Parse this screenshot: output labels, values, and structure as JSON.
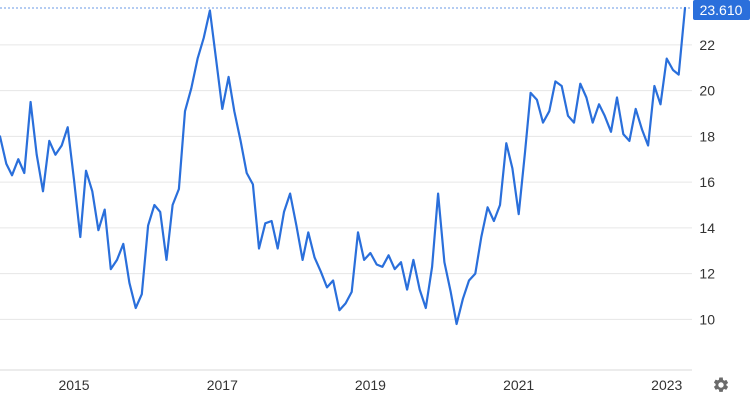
{
  "chart_data": {
    "type": "line",
    "title": "",
    "xlabel": "",
    "ylabel": "",
    "x_ticks": [
      "2015",
      "2017",
      "2019",
      "2021",
      "2023"
    ],
    "y_ticks": [
      "10",
      "12",
      "14",
      "16",
      "18",
      "20",
      "22"
    ],
    "ylim": [
      8.4,
      23.61
    ],
    "grid": "horizontal",
    "last_value_label": "23.610",
    "colors": {
      "line": "#2a6fdb",
      "grid": "#e6e6e6",
      "badge": "#2a6fdb"
    },
    "series": [
      {
        "x": [
          "2014-01",
          "2014-02",
          "2014-03",
          "2014-04",
          "2014-05",
          "2014-06",
          "2014-07",
          "2014-08",
          "2014-09",
          "2014-10",
          "2014-11",
          "2014-12",
          "2015-01",
          "2015-02",
          "2015-03",
          "2015-04",
          "2015-05",
          "2015-06",
          "2015-07",
          "2015-08",
          "2015-09",
          "2015-10",
          "2015-11",
          "2015-12",
          "2016-01",
          "2016-02",
          "2016-03",
          "2016-04",
          "2016-05",
          "2016-06",
          "2016-07",
          "2016-08",
          "2016-09",
          "2016-10",
          "2016-11",
          "2016-12",
          "2017-01",
          "2017-02",
          "2017-03",
          "2017-04",
          "2017-05",
          "2017-06",
          "2017-07",
          "2017-08",
          "2017-09",
          "2017-10",
          "2017-11",
          "2017-12",
          "2018-01",
          "2018-02",
          "2018-03",
          "2018-04",
          "2018-05",
          "2018-06",
          "2018-07",
          "2018-08",
          "2018-09",
          "2018-10",
          "2018-11",
          "2018-12",
          "2019-01",
          "2019-02",
          "2019-03",
          "2019-04",
          "2019-05",
          "2019-06",
          "2019-07",
          "2019-08",
          "2019-09",
          "2019-10",
          "2019-11",
          "2019-12",
          "2020-01",
          "2020-02",
          "2020-03",
          "2020-04",
          "2020-05",
          "2020-06",
          "2020-07",
          "2020-08",
          "2020-09",
          "2020-10",
          "2020-11",
          "2020-12",
          "2021-01",
          "2021-02",
          "2021-03",
          "2021-04",
          "2021-05",
          "2021-06",
          "2021-07",
          "2021-08",
          "2021-09",
          "2021-10",
          "2021-11",
          "2021-12",
          "2022-01",
          "2022-02",
          "2022-03",
          "2022-04",
          "2022-05",
          "2022-06",
          "2022-07",
          "2022-08",
          "2022-09",
          "2022-10",
          "2022-11",
          "2022-12",
          "2023-01",
          "2023-02",
          "2023-03",
          "2023-04"
        ],
        "values": [
          18.0,
          16.8,
          16.3,
          17.0,
          16.4,
          19.5,
          17.2,
          15.6,
          17.8,
          17.2,
          17.6,
          18.4,
          16.1,
          13.6,
          16.5,
          15.6,
          13.9,
          14.8,
          12.2,
          12.6,
          13.3,
          11.6,
          10.5,
          11.1,
          14.1,
          15.0,
          14.7,
          12.6,
          15.0,
          15.7,
          19.1,
          20.1,
          21.4,
          22.3,
          23.5,
          21.4,
          19.2,
          20.6,
          19.1,
          17.8,
          16.4,
          15.9,
          13.1,
          14.2,
          14.3,
          13.1,
          14.7,
          15.5,
          14.1,
          12.6,
          13.8,
          12.7,
          12.1,
          11.4,
          11.7,
          10.4,
          10.7,
          11.2,
          13.8,
          12.6,
          12.9,
          12.4,
          12.3,
          12.8,
          12.2,
          12.5,
          11.3,
          12.6,
          11.3,
          10.5,
          12.3,
          15.5,
          12.5,
          11.2,
          9.8,
          10.9,
          11.7,
          12.0,
          13.6,
          14.9,
          14.3,
          15.0,
          17.7,
          16.6,
          14.6,
          17.3,
          19.9,
          19.6,
          18.6,
          19.1,
          20.4,
          20.2,
          18.9,
          18.6,
          20.3,
          19.7,
          18.6,
          19.4,
          18.9,
          18.2,
          19.7,
          18.1,
          17.8,
          19.2,
          18.3,
          17.6,
          20.2,
          19.4,
          21.4,
          20.9,
          20.7,
          23.61
        ]
      }
    ]
  }
}
